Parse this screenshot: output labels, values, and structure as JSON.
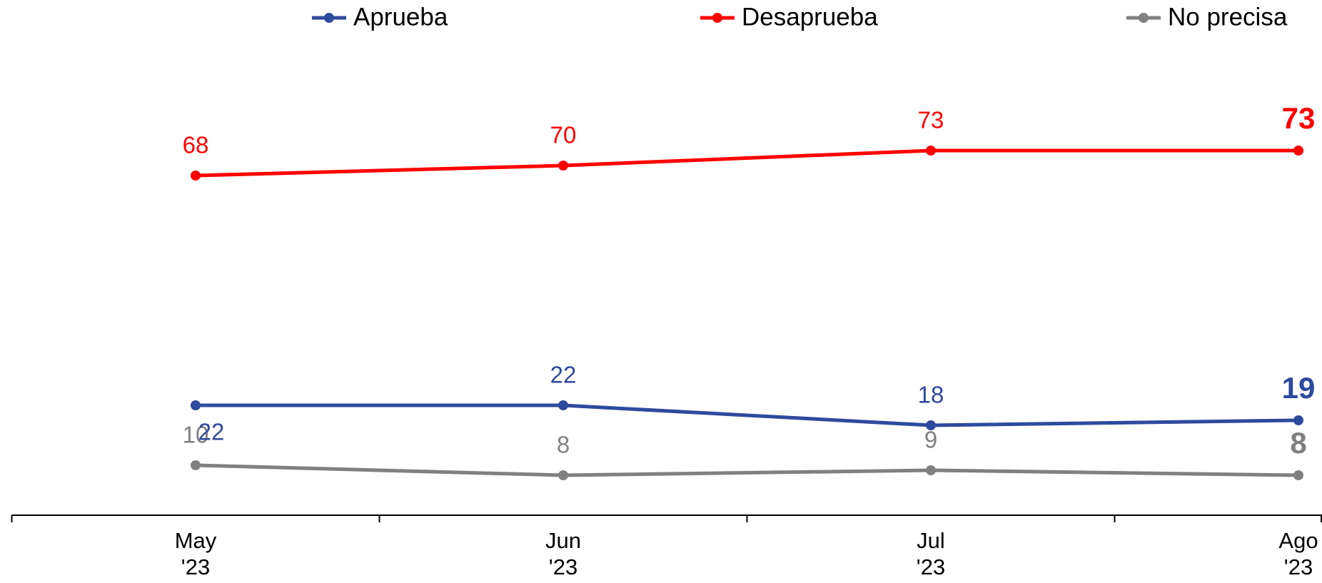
{
  "chart_data": {
    "type": "line",
    "categories": [
      [
        "May",
        "'23"
      ],
      [
        "Jun",
        "'23"
      ],
      [
        "Jul",
        "'23"
      ],
      [
        "Ago",
        "'23"
      ]
    ],
    "series": [
      {
        "name": "Aprueba",
        "color": "#2e4a9e",
        "values": [
          22,
          22,
          18,
          19
        ]
      },
      {
        "name": "Desaprueba",
        "color": "#ff0000",
        "values": [
          68,
          70,
          73,
          73
        ]
      },
      {
        "name": "No precisa",
        "color": "#808080",
        "values": [
          10,
          8,
          9,
          8
        ]
      }
    ],
    "ylim": [
      0,
      100
    ],
    "legend": "top"
  }
}
